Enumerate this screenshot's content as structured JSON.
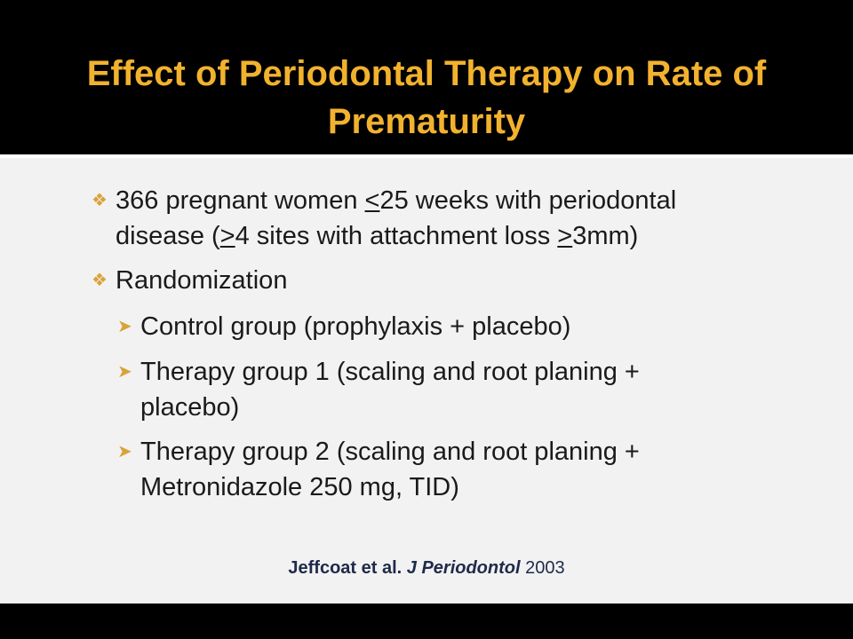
{
  "slide": {
    "title": "Effect of Periodontal Therapy on Rate of Prematurity",
    "colors": {
      "title": "#F2B22E",
      "bullet": "#D9A23A",
      "background": "#F2F2F2",
      "band": "#000000",
      "citation": "#1F2A4A"
    },
    "bullets": {
      "b1": {
        "icon": "diamond-bullet-icon",
        "part1": "366 pregnant women ",
        "lte": "<",
        "part2": "25 weeks with periodontal disease (",
        "gte1": ">",
        "part3": "4 sites with attachment loss ",
        "gte2": ">",
        "part4": "3mm)"
      },
      "b2": {
        "icon": "diamond-bullet-icon",
        "text": "Randomization"
      },
      "sub": [
        {
          "icon": "arrow-bullet-icon",
          "text": "Control group (prophylaxis  + placebo)"
        },
        {
          "icon": "arrow-bullet-icon",
          "text": "Therapy group 1 (scaling and root planing + placebo)"
        },
        {
          "icon": "arrow-bullet-icon",
          "text": "Therapy group 2 (scaling and root planing + Metronidazole 250 mg, TID)"
        }
      ]
    },
    "citation": {
      "authors": "Jeffcoat et al. ",
      "journal": "J Periodontol",
      "year": " 2003"
    }
  }
}
